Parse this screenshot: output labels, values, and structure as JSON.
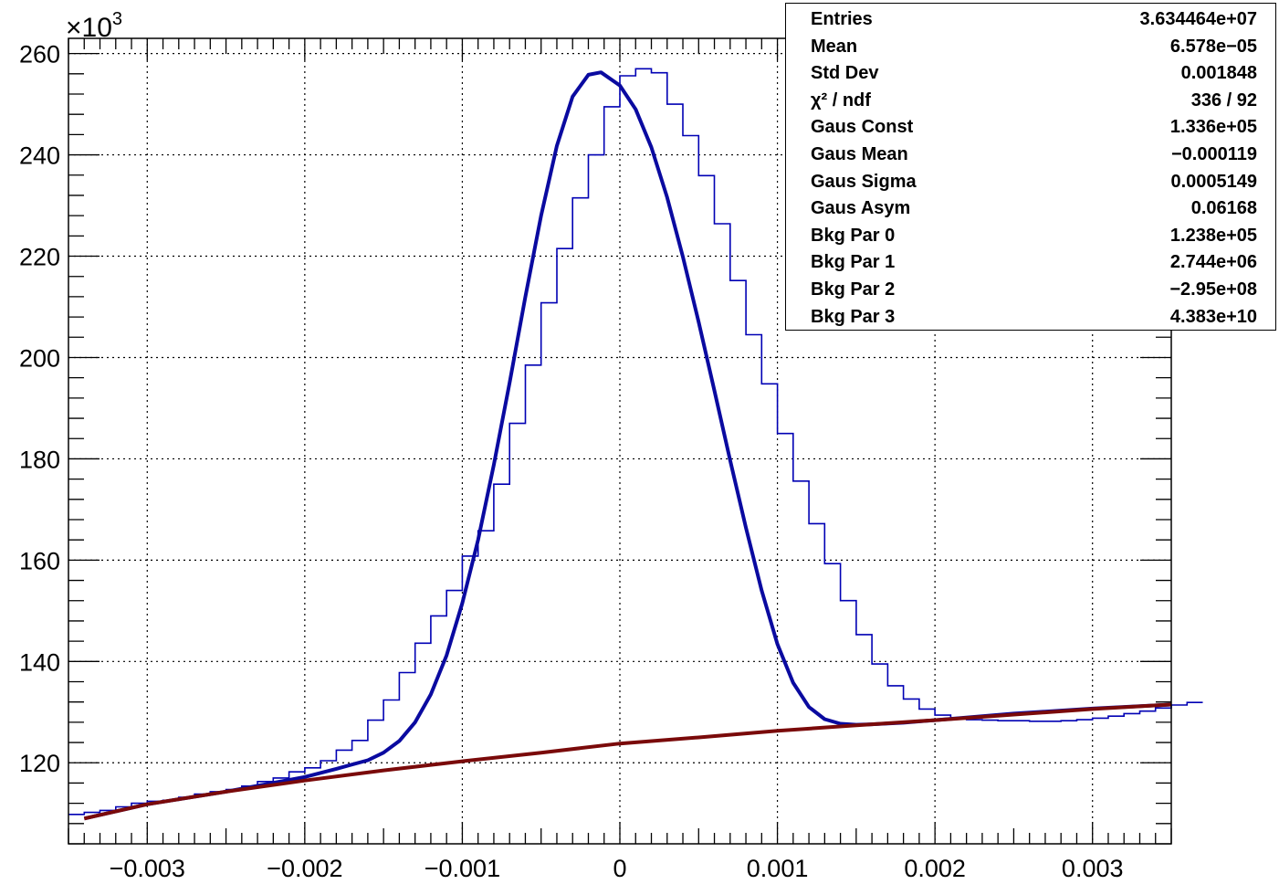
{
  "chart_data": {
    "type": "line",
    "xlim": [
      -0.0035,
      0.0035
    ],
    "ylim": [
      104000,
      263000
    ],
    "y_multiplier_label": {
      "base": "×10",
      "exponent": "3"
    },
    "x_ticks": [
      -0.003,
      -0.002,
      -0.001,
      0,
      0.001,
      0.002,
      0.003
    ],
    "x_tick_labels": [
      "−0.003",
      "−0.002",
      "−0.001",
      "0",
      "0.001",
      "0.002",
      "0.003"
    ],
    "y_ticks": [
      120000,
      140000,
      160000,
      180000,
      200000,
      220000,
      240000,
      260000
    ],
    "y_tick_labels": [
      "120",
      "140",
      "160",
      "180",
      "200",
      "220",
      "240",
      "260"
    ],
    "grid": true,
    "histogram": {
      "bin_width": 0.0001,
      "x_start": -0.0035,
      "counts": [
        109800,
        110200,
        110600,
        111300,
        112000,
        112400,
        112600,
        113200,
        113800,
        114300,
        114700,
        115400,
        116300,
        117000,
        118200,
        119000,
        120400,
        122500,
        124400,
        128400,
        132400,
        137800,
        143600,
        149000,
        154000,
        160800,
        165800,
        175000,
        187000,
        198500,
        210800,
        221500,
        231500,
        240000,
        249500,
        255600,
        257000,
        256200,
        250000,
        243800,
        235900,
        226400,
        215200,
        204500,
        194800,
        185000,
        175600,
        167200,
        159300,
        152000,
        145300,
        139500,
        135200,
        132600,
        130600,
        129400,
        128800,
        128500,
        128400,
        128300,
        128300,
        128200,
        128200,
        128300,
        128500,
        128800,
        129200,
        129700,
        130200,
        130800,
        131400,
        131900
      ]
    },
    "series": [
      {
        "color": "#0a0aa0",
        "x": [
          -0.0034,
          -0.003,
          -0.0025,
          -0.002,
          -0.0018,
          -0.0016,
          -0.0015,
          -0.0014,
          -0.0013,
          -0.0012,
          -0.0011,
          -0.001,
          -0.0009,
          -0.0008,
          -0.0007,
          -0.0006,
          -0.0005,
          -0.0004,
          -0.0003,
          -0.0002,
          -0.00012,
          0.0,
          0.0001,
          0.0002,
          0.0003,
          0.0004,
          0.0005,
          0.0006,
          0.0007,
          0.0008,
          0.0009,
          0.001,
          0.0011,
          0.0012,
          0.0013,
          0.0014,
          0.0015,
          0.0016,
          0.0018,
          0.002,
          0.0025,
          0.003,
          0.0035
        ],
        "y": [
          109000,
          111800,
          114300,
          117200,
          118800,
          120500,
          122000,
          124300,
          128000,
          133500,
          141200,
          151500,
          164000,
          178800,
          195000,
          212000,
          228000,
          241800,
          251500,
          255800,
          256300,
          253700,
          249000,
          241500,
          231600,
          219900,
          207000,
          193500,
          179700,
          166400,
          154000,
          143400,
          135800,
          131000,
          128600,
          127700,
          127500,
          127600,
          127900,
          128400,
          129700,
          130700,
          131500
        ]
      },
      {
        "color": "#7a0a0a",
        "x": [
          -0.0034,
          -0.003,
          -0.0025,
          -0.002,
          -0.0015,
          -0.001,
          -0.0005,
          0.0,
          0.0005,
          0.001,
          0.0015,
          0.002,
          0.0025,
          0.003,
          0.0035
        ],
        "y": [
          109000,
          111800,
          114300,
          116500,
          118500,
          120300,
          122000,
          123800,
          125000,
          126300,
          127400,
          128400,
          129500,
          130600,
          131500
        ]
      }
    ]
  },
  "stats": {
    "rows": [
      {
        "label": "Entries",
        "value": "3.634464e+07"
      },
      {
        "label": "Mean",
        "value": "6.578e−05"
      },
      {
        "label": "Std Dev",
        "value": "0.001848"
      },
      {
        "label": "χ² / ndf",
        "value": "336 / 92"
      },
      {
        "label": "Gaus Const",
        "value": "1.336e+05"
      },
      {
        "label": "Gaus Mean",
        "value": "−0.000119"
      },
      {
        "label": "Gaus Sigma",
        "value": "0.0005149"
      },
      {
        "label": "Gaus Asym",
        "value": "0.06168"
      },
      {
        "label": "Bkg Par 0",
        "value": "1.238e+05"
      },
      {
        "label": "Bkg Par 1",
        "value": "2.744e+06"
      },
      {
        "label": "Bkg Par 2",
        "value": "−2.95e+08"
      },
      {
        "label": "Bkg Par 3",
        "value": "4.383e+10"
      }
    ]
  }
}
